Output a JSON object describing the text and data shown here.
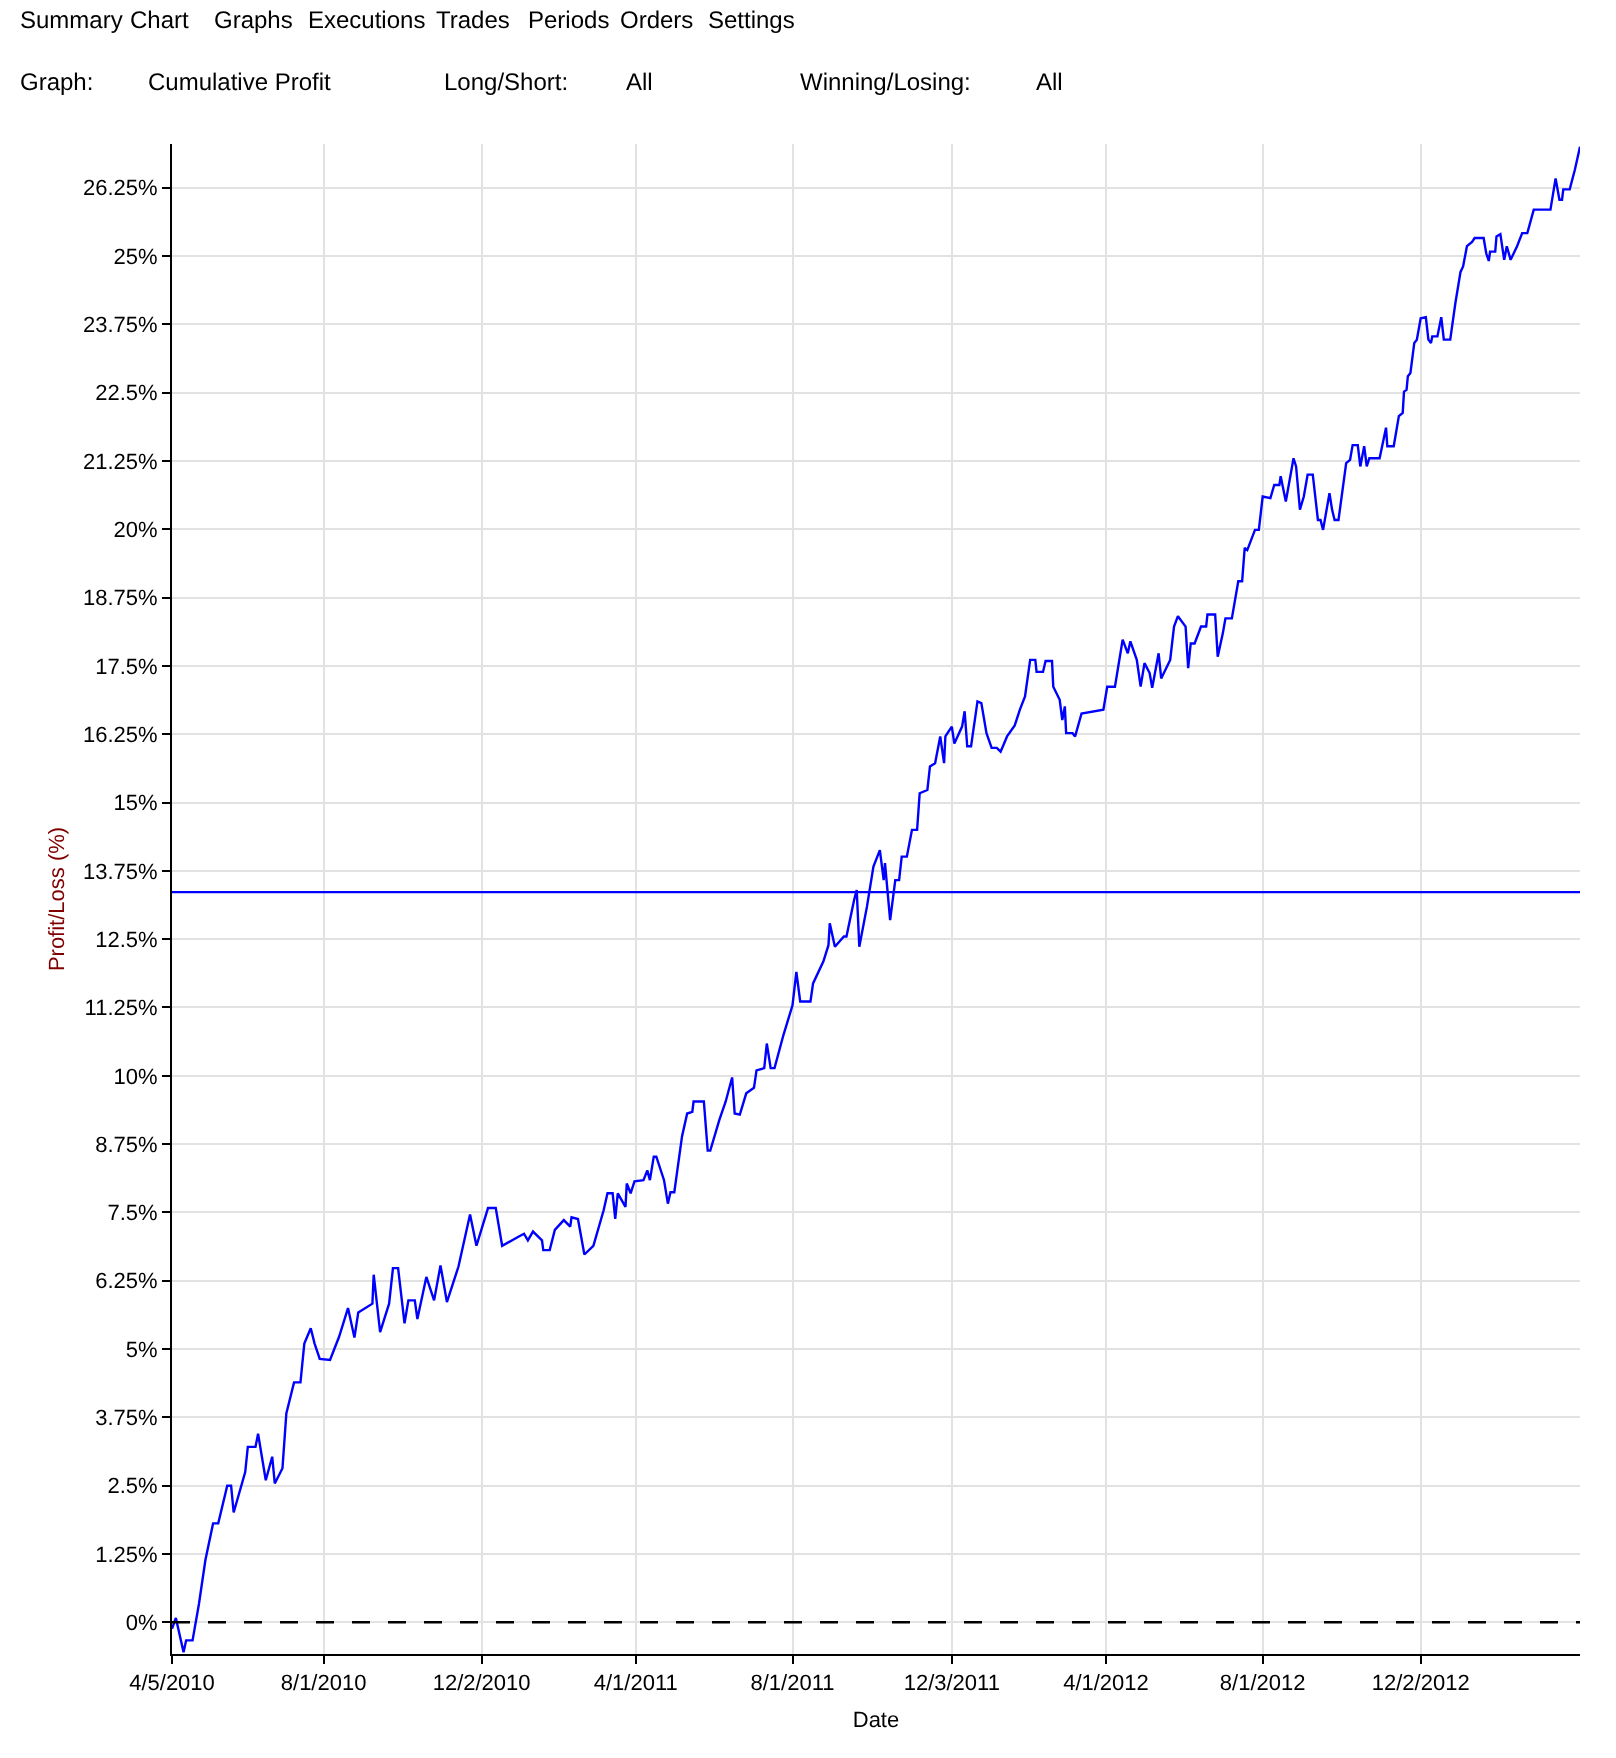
{
  "chart_data": {
    "type": "line",
    "xlabel": "Date",
    "ylabel": "Profit/Loss (%)",
    "annotations": [
      "Summary",
      "Chart",
      "Graphs",
      "Executions",
      "Trades",
      "Periods",
      "Orders",
      "Settings",
      "Graph:",
      "Cumulative Profit",
      "Long/Short:",
      "All",
      "Winning/Losing:",
      "All"
    ],
    "x": [
      "2010-04-05",
      "2010-04-08",
      "2010-04-14",
      "2010-04-16",
      "2010-04-21",
      "2010-04-26",
      "2010-05-01",
      "2010-05-07",
      "2010-05-11",
      "2010-05-18",
      "2010-05-21",
      "2010-05-23",
      "2010-06-01",
      "2010-06-03",
      "2010-06-09",
      "2010-06-11",
      "2010-06-17",
      "2010-06-22",
      "2010-06-24",
      "2010-06-30",
      "2010-07-03",
      "2010-07-09",
      "2010-07-14",
      "2010-07-17",
      "2010-07-22",
      "2010-07-25",
      "2010-07-29",
      "2010-08-06",
      "2010-08-13",
      "2010-08-20",
      "2010-08-25",
      "2010-08-28",
      "2010-09-08",
      "2010-09-09",
      "2010-09-14",
      "2010-09-21",
      "2010-09-24",
      "2010-09-28",
      "2010-10-03",
      "2010-10-06",
      "2010-10-11",
      "2010-10-13",
      "2010-10-20",
      "2010-10-26",
      "2010-10-31",
      "2010-11-05",
      "2010-11-14",
      "2010-11-23",
      "2010-11-28",
      "2010-12-07",
      "2010-12-13",
      "2010-12-18",
      "2010-12-31",
      "2011-01-04",
      "2011-01-07",
      "2011-01-11",
      "2011-01-18",
      "2011-01-19",
      "2011-01-24",
      "2011-01-28",
      "2011-02-04",
      "2011-02-09",
      "2011-02-10",
      "2011-02-15",
      "2011-02-20",
      "2011-02-27",
      "2011-03-07",
      "2011-03-10",
      "2011-03-14",
      "2011-03-16",
      "2011-03-18",
      "2011-03-24",
      "2011-03-25",
      "2011-03-28",
      "2011-03-31",
      "2011-04-07",
      "2011-04-10",
      "2011-04-12",
      "2011-04-15",
      "2011-04-17",
      "2011-04-23",
      "2011-04-26",
      "2011-04-28",
      "2011-05-01",
      "2011-05-07",
      "2011-05-11",
      "2011-05-15",
      "2011-05-16",
      "2011-05-24",
      "2011-05-27",
      "2011-05-29",
      "2011-06-05",
      "2011-06-10",
      "2011-06-15",
      "2011-06-17",
      "2011-06-21",
      "2011-06-26",
      "2011-07-02",
      "2011-07-04",
      "2011-07-10",
      "2011-07-12",
      "2011-07-15",
      "2011-07-18",
      "2011-07-25",
      "2011-08-01",
      "2011-08-04",
      "2011-08-07",
      "2011-08-15",
      "2011-08-17",
      "2011-08-25",
      "2011-08-29",
      "2011-08-30",
      "2011-09-03",
      "2011-09-10",
      "2011-09-12",
      "2011-09-18",
      "2011-09-20",
      "2011-09-22",
      "2011-09-28",
      "2011-10-03",
      "2011-10-08",
      "2011-10-11",
      "2011-10-12",
      "2011-10-16",
      "2011-10-20",
      "2011-10-23",
      "2011-10-25",
      "2011-10-29",
      "2011-11-02",
      "2011-11-06",
      "2011-11-08",
      "2011-11-14",
      "2011-11-16",
      "2011-11-20",
      "2011-11-24",
      "2011-11-27",
      "2011-11-28",
      "2011-12-03",
      "2011-12-05",
      "2011-12-11",
      "2011-12-13",
      "2011-12-15",
      "2011-12-18",
      "2011-12-23",
      "2011-12-26",
      "2011-12-30",
      "2012-01-03",
      "2012-01-07",
      "2012-01-10",
      "2012-01-15",
      "2012-01-21",
      "2012-01-25",
      "2012-01-29",
      "2012-02-02",
      "2012-02-06",
      "2012-02-07",
      "2012-02-12",
      "2012-02-14",
      "2012-02-19",
      "2012-02-20",
      "2012-02-25",
      "2012-02-27",
      "2012-02-29",
      "2012-03-01",
      "2012-03-06",
      "2012-03-08",
      "2012-03-13",
      "2012-03-30",
      "2012-04-02",
      "2012-04-08",
      "2012-04-14",
      "2012-04-18",
      "2012-04-20",
      "2012-04-25",
      "2012-04-28",
      "2012-05-01",
      "2012-05-05",
      "2012-05-07",
      "2012-05-12",
      "2012-05-14",
      "2012-05-21",
      "2012-05-24",
      "2012-05-27",
      "2012-06-02",
      "2012-06-04",
      "2012-06-06",
      "2012-06-09",
      "2012-06-14",
      "2012-06-18",
      "2012-06-19",
      "2012-06-25",
      "2012-06-27",
      "2012-07-01",
      "2012-07-03",
      "2012-07-08",
      "2012-07-13",
      "2012-07-16",
      "2012-07-18",
      "2012-07-20",
      "2012-07-26",
      "2012-07-29",
      "2012-08-01",
      "2012-08-07",
      "2012-08-10",
      "2012-08-14",
      "2012-08-15",
      "2012-08-19",
      "2012-08-25",
      "2012-08-27",
      "2012-08-30",
      "2012-09-02",
      "2012-09-05",
      "2012-09-09",
      "2012-09-13",
      "2012-09-15",
      "2012-09-17",
      "2012-09-22",
      "2012-09-24",
      "2012-09-26",
      "2012-09-29",
      "2012-10-05",
      "2012-10-08",
      "2012-10-10",
      "2012-10-14",
      "2012-10-16",
      "2012-10-19",
      "2012-10-21",
      "2012-10-23",
      "2012-10-31",
      "2012-11-05",
      "2012-11-06",
      "2012-11-11",
      "2012-11-15",
      "2012-11-18",
      "2012-11-19",
      "2012-11-21",
      "2012-11-22",
      "2012-11-24",
      "2012-11-27",
      "2012-11-29",
      "2012-12-02",
      "2012-12-06",
      "2012-12-08",
      "2012-12-10",
      "2012-12-11",
      "2012-12-15",
      "2012-12-18",
      "2012-12-20",
      "2012-12-25",
      "2012-12-29",
      "2013-01-02",
      "2013-01-04",
      "2013-01-07",
      "2013-01-11",
      "2013-01-13",
      "2013-01-20",
      "2013-01-22",
      "2013-01-24",
      "2013-01-25",
      "2013-01-29",
      "2013-01-30",
      "2013-02-02",
      "2013-02-05",
      "2013-02-07",
      "2013-02-10",
      "2013-02-15",
      "2013-02-19",
      "2013-02-23",
      "2013-02-28",
      "2013-03-13",
      "2013-03-17",
      "2013-03-20",
      "2013-03-22",
      "2013-03-23",
      "2013-03-28",
      "2013-04-01",
      "2013-04-05"
    ],
    "series": [
      {
        "color": "#0000ff",
        "values": [
          -0.12,
          0.08,
          -0.55,
          -0.33,
          -0.33,
          0.34,
          1.14,
          1.81,
          1.81,
          2.5,
          2.5,
          2.01,
          2.75,
          3.21,
          3.21,
          3.45,
          2.6,
          3.03,
          2.54,
          2.82,
          3.82,
          4.39,
          4.39,
          5.1,
          5.38,
          5.1,
          4.82,
          4.8,
          5.22,
          5.75,
          5.21,
          5.67,
          5.83,
          6.36,
          5.31,
          5.83,
          6.48,
          6.48,
          5.47,
          5.89,
          5.89,
          5.55,
          6.32,
          5.89,
          6.53,
          5.86,
          6.51,
          7.46,
          6.89,
          7.58,
          7.58,
          6.89,
          7.06,
          7.11,
          6.99,
          7.15,
          6.99,
          6.81,
          6.81,
          7.18,
          7.36,
          7.24,
          7.41,
          7.38,
          6.73,
          6.89,
          7.54,
          7.85,
          7.85,
          7.38,
          7.85,
          7.6,
          8.03,
          7.85,
          8.07,
          8.09,
          8.27,
          8.09,
          8.52,
          8.52,
          8.09,
          7.66,
          7.87,
          7.87,
          8.89,
          9.31,
          9.34,
          9.53,
          9.53,
          8.63,
          8.63,
          9.19,
          9.53,
          9.97,
          9.31,
          9.29,
          9.68,
          9.78,
          10.1,
          10.14,
          10.59,
          10.14,
          10.14,
          10.75,
          11.29,
          11.9,
          11.36,
          11.36,
          11.69,
          12.09,
          12.39,
          12.79,
          12.36,
          12.55,
          12.55,
          13.22,
          13.4,
          12.36,
          13.1,
          13.83,
          14.13,
          13.58,
          13.89,
          12.85,
          13.58,
          13.58,
          14.01,
          14.01,
          14.5,
          14.5,
          15.17,
          15.23,
          15.66,
          15.72,
          16.21,
          15.72,
          16.21,
          16.39,
          16.08,
          16.39,
          16.67,
          16.03,
          16.03,
          16.85,
          16.82,
          16.27,
          16.0,
          16.0,
          15.93,
          16.21,
          16.41,
          16.7,
          16.94,
          17.61,
          17.61,
          17.39,
          17.39,
          17.59,
          17.59,
          17.12,
          16.88,
          16.51,
          16.76,
          16.27,
          16.27,
          16.21,
          16.63,
          16.7,
          17.12,
          17.12,
          17.98,
          17.73,
          17.95,
          17.61,
          17.12,
          17.55,
          17.37,
          17.1,
          17.73,
          17.27,
          17.61,
          18.22,
          18.41,
          18.22,
          17.46,
          17.91,
          17.91,
          18.22,
          18.22,
          18.44,
          18.44,
          17.67,
          18.1,
          18.37,
          18.37,
          19.05,
          19.05,
          19.66,
          19.62,
          19.99,
          19.99,
          20.6,
          20.57,
          20.81,
          20.81,
          20.97,
          20.51,
          21.3,
          21.15,
          20.36,
          20.6,
          21.0,
          21.0,
          20.17,
          20.17,
          19.99,
          20.66,
          20.36,
          20.17,
          20.17,
          21.21,
          21.27,
          21.54,
          21.54,
          21.15,
          21.52,
          21.15,
          21.3,
          21.3,
          21.86,
          21.52,
          21.52,
          22.07,
          22.13,
          22.52,
          22.55,
          22.8,
          22.86,
          23.41,
          23.47,
          23.86,
          23.88,
          23.47,
          23.41,
          23.53,
          23.53,
          23.88,
          23.47,
          23.47,
          24.14,
          24.71,
          24.81,
          25.18,
          25.26,
          25.33,
          25.33,
          25.05,
          24.91,
          25.08,
          25.08,
          25.36,
          25.4,
          24.93,
          25.18,
          24.93,
          25.18,
          25.42,
          25.42,
          25.85,
          25.85,
          26.42,
          26.03,
          26.03,
          26.22,
          26.22,
          26.58,
          27.0
        ]
      }
    ],
    "xlim": [
      "2010-04-05",
      "2013-04-05"
    ],
    "xticks": [
      {
        "value": "2010-04-05",
        "label": "4/5/2010"
      },
      {
        "value": "2010-08-01",
        "label": "8/1/2010"
      },
      {
        "value": "2010-12-02",
        "label": "12/2/2010"
      },
      {
        "value": "2011-04-01",
        "label": "4/1/2011"
      },
      {
        "value": "2011-08-01",
        "label": "8/1/2011"
      },
      {
        "value": "2011-12-03",
        "label": "12/3/2011"
      },
      {
        "value": "2012-04-01",
        "label": "4/1/2012"
      },
      {
        "value": "2012-08-01",
        "label": "8/1/2012"
      },
      {
        "value": "2012-12-02",
        "label": "12/2/2012"
      }
    ],
    "ylim": [
      -0.58,
      27.05
    ],
    "yticks": [
      {
        "value": 0,
        "label": "0%"
      },
      {
        "value": 1.25,
        "label": "1.25%"
      },
      {
        "value": 2.5,
        "label": "2.5%"
      },
      {
        "value": 3.75,
        "label": "3.75%"
      },
      {
        "value": 5,
        "label": "5%"
      },
      {
        "value": 6.25,
        "label": "6.25%"
      },
      {
        "value": 7.5,
        "label": "7.5%"
      },
      {
        "value": 8.75,
        "label": "8.75%"
      },
      {
        "value": 10,
        "label": "10%"
      },
      {
        "value": 11.25,
        "label": "11.25%"
      },
      {
        "value": 12.5,
        "label": "12.5%"
      },
      {
        "value": 13.75,
        "label": "13.75%"
      },
      {
        "value": 15,
        "label": "15%"
      },
      {
        "value": 16.25,
        "label": "16.25%"
      },
      {
        "value": 17.5,
        "label": "17.5%"
      },
      {
        "value": 18.75,
        "label": "18.75%"
      },
      {
        "value": 20,
        "label": "20%"
      },
      {
        "value": 21.25,
        "label": "21.25%"
      },
      {
        "value": 22.5,
        "label": "22.5%"
      },
      {
        "value": 23.75,
        "label": "23.75%"
      },
      {
        "value": 25,
        "label": "25%"
      },
      {
        "value": 26.25,
        "label": "26.25%"
      }
    ],
    "ref_lines": [
      {
        "axis": "y",
        "value": 0,
        "color": "#000000",
        "line_style": "dashed"
      },
      {
        "axis": "y",
        "value": 13.36,
        "color": "#0000ff",
        "line_style": "solid"
      }
    ],
    "grid": true,
    "marker": "none",
    "line_style": "solid"
  }
}
